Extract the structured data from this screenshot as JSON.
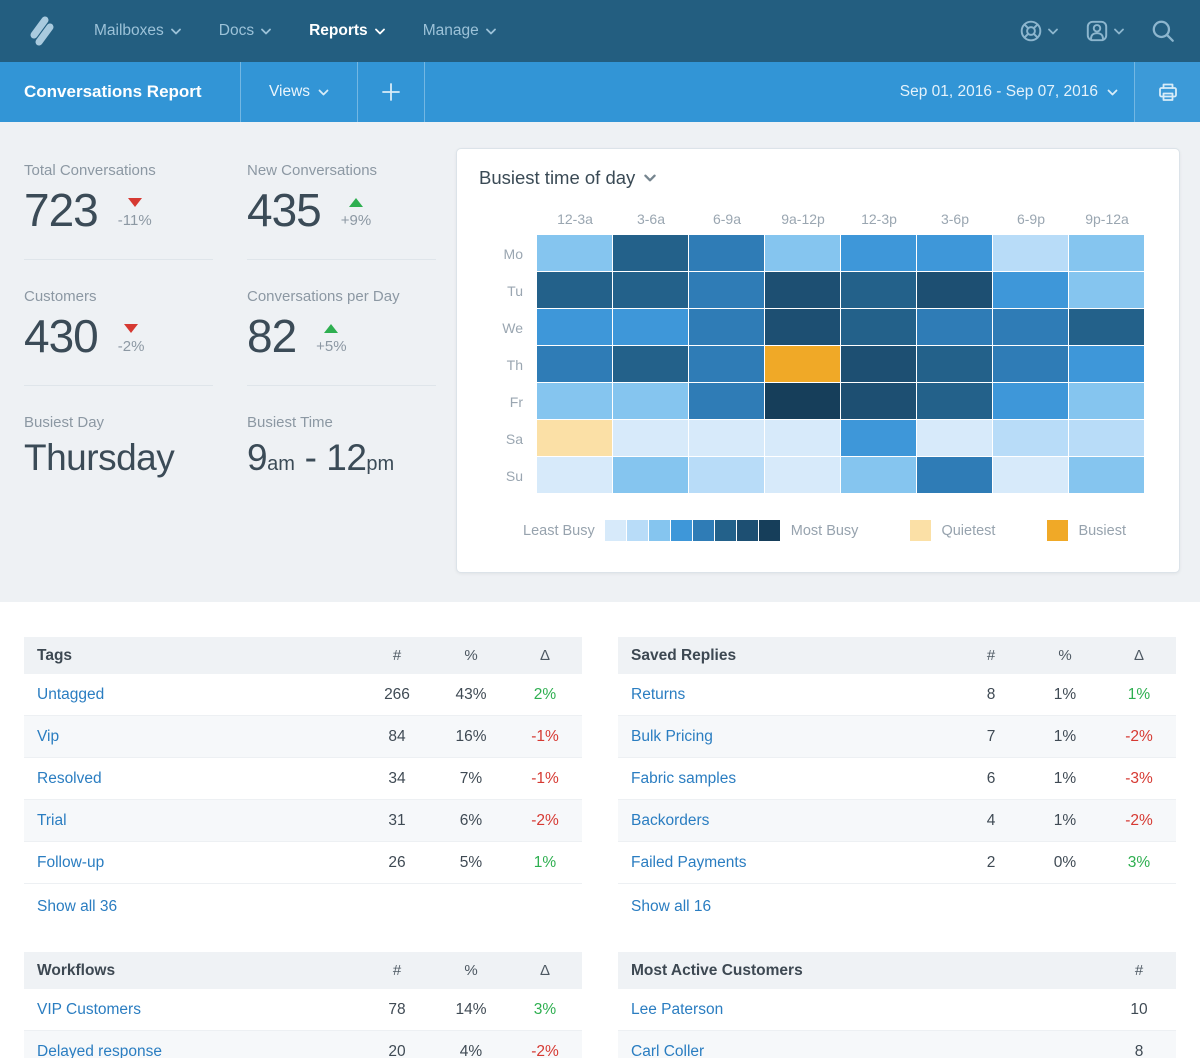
{
  "colors": {
    "topbar": "#235e80",
    "subbar": "#3295d6",
    "link_blue": "#2a7dc1",
    "positive_green": "#2eaf50",
    "negative_red": "#d63932"
  },
  "topnav": {
    "logo": "help-scout-logo",
    "items": [
      {
        "id": "mailboxes",
        "label": "Mailboxes",
        "active": false
      },
      {
        "id": "docs",
        "label": "Docs",
        "active": false
      },
      {
        "id": "reports",
        "label": "Reports",
        "active": true
      },
      {
        "id": "manage",
        "label": "Manage",
        "active": false
      }
    ],
    "right_icons": [
      "help-icon",
      "account-icon",
      "search-icon"
    ]
  },
  "subbar": {
    "title": "Conversations Report",
    "views_label": "Views",
    "add_label": "+",
    "date_range": "Sep 01, 2016 - Sep 07, 2016",
    "print_icon": "print-icon"
  },
  "stats": [
    {
      "id": "total-conversations",
      "label": "Total Conversations",
      "value": "723",
      "delta": "-11%",
      "dir": "down"
    },
    {
      "id": "new-conversations",
      "label": "New Conversations",
      "value": "435",
      "delta": "+9%",
      "dir": "up"
    },
    {
      "id": "customers",
      "label": "Customers",
      "value": "430",
      "delta": "-2%",
      "dir": "down"
    },
    {
      "id": "conversations-per-day",
      "label": "Conversations per Day",
      "value": "82",
      "delta": "+5%",
      "dir": "up"
    }
  ],
  "busiest_day": {
    "label": "Busiest Day",
    "value": "Thursday"
  },
  "busiest_time": {
    "label": "Busiest Time",
    "start": "9",
    "start_suffix": "am",
    "separator": " - ",
    "end": "12",
    "end_suffix": "pm"
  },
  "chart_data": {
    "type": "heatmap",
    "title": "Busiest time of day",
    "columns": [
      "12-3a",
      "3-6a",
      "6-9a",
      "9a-12p",
      "12-3p",
      "3-6p",
      "6-9p",
      "9p-12a"
    ],
    "rows": [
      "Mo",
      "Tu",
      "We",
      "Th",
      "Fr",
      "Sa",
      "Su"
    ],
    "values": [
      [
        3,
        6,
        5,
        3,
        4,
        4,
        2,
        3
      ],
      [
        6,
        6,
        5,
        7,
        6,
        7,
        4,
        3
      ],
      [
        4,
        4,
        5,
        7,
        6,
        5,
        5,
        6
      ],
      [
        5,
        6,
        5,
        "B",
        7,
        6,
        5,
        4
      ],
      [
        3,
        3,
        5,
        8,
        7,
        6,
        4,
        3
      ],
      [
        "Q",
        1,
        1,
        1,
        4,
        1,
        2,
        2
      ],
      [
        1,
        3,
        2,
        1,
        3,
        5,
        1,
        3
      ]
    ],
    "value_scale": "1=least busy … 8=most busy, Q=quietest, B=busiest",
    "palette": {
      "l1": "#d7eafa",
      "l2": "#b8dcf8",
      "l3": "#85c5ef",
      "l4": "#3e97d9",
      "l5": "#2f7cb6",
      "l6": "#23618a",
      "l7": "#1d4f72",
      "l8": "#163e5a",
      "quietest": "#fbe0a6",
      "busiest": "#f0a927"
    },
    "legend": {
      "least": "Least Busy",
      "most": "Most Busy",
      "quietest": "Quietest",
      "busiest": "Busiest"
    }
  },
  "tables": {
    "tags": {
      "title": "Tags",
      "headers": [
        "#",
        "%",
        "Δ"
      ],
      "rows": [
        {
          "label": "Untagged",
          "count": "266",
          "pct": "43%",
          "delta": "2%",
          "dir": "up"
        },
        {
          "label": "Vip",
          "count": "84",
          "pct": "16%",
          "delta": "-1%",
          "dir": "down"
        },
        {
          "label": "Resolved",
          "count": "34",
          "pct": "7%",
          "delta": "-1%",
          "dir": "down"
        },
        {
          "label": "Trial",
          "count": "31",
          "pct": "6%",
          "delta": "-2%",
          "dir": "down"
        },
        {
          "label": "Follow-up",
          "count": "26",
          "pct": "5%",
          "delta": "1%",
          "dir": "up"
        }
      ],
      "show_all": "Show all 36"
    },
    "saved_replies": {
      "title": "Saved Replies",
      "headers": [
        "#",
        "%",
        "Δ"
      ],
      "rows": [
        {
          "label": "Returns",
          "count": "8",
          "pct": "1%",
          "delta": "1%",
          "dir": "up"
        },
        {
          "label": "Bulk Pricing",
          "count": "7",
          "pct": "1%",
          "delta": "-2%",
          "dir": "down"
        },
        {
          "label": "Fabric samples",
          "count": "6",
          "pct": "1%",
          "delta": "-3%",
          "dir": "down"
        },
        {
          "label": "Backorders",
          "count": "4",
          "pct": "1%",
          "delta": "-2%",
          "dir": "down"
        },
        {
          "label": "Failed Payments",
          "count": "2",
          "pct": "0%",
          "delta": "3%",
          "dir": "up"
        }
      ],
      "show_all": "Show all 16"
    },
    "workflows": {
      "title": "Workflows",
      "headers": [
        "#",
        "%",
        "Δ"
      ],
      "rows": [
        {
          "label": "VIP Customers",
          "count": "78",
          "pct": "14%",
          "delta": "3%",
          "dir": "up"
        },
        {
          "label": "Delayed response",
          "count": "20",
          "pct": "4%",
          "delta": "-2%",
          "dir": "down"
        }
      ]
    },
    "most_active_customers": {
      "title": "Most Active Customers",
      "headers": [
        "#"
      ],
      "rows": [
        {
          "label": "Lee Paterson",
          "count": "10"
        },
        {
          "label": "Carl Coller",
          "count": "8"
        }
      ]
    }
  }
}
